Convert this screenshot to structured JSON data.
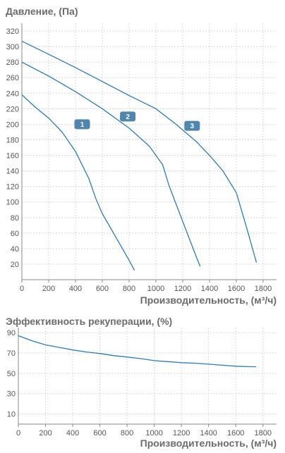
{
  "chart_data": [
    {
      "type": "line",
      "title": "Давление, (Па)",
      "xlabel": "Производительность, (м³/ч)",
      "ylabel": "",
      "xlim": [
        0,
        1900
      ],
      "ylim": [
        0,
        330
      ],
      "xticks": [
        "0",
        "200",
        "400",
        "600",
        "800",
        "1000",
        "1200",
        "1400",
        "1600",
        "1800"
      ],
      "yticks": [
        "20",
        "40",
        "60",
        "80",
        "100",
        "120",
        "140",
        "160",
        "180",
        "200",
        "220",
        "240",
        "260",
        "280",
        "300",
        "320"
      ],
      "grid": true,
      "series": [
        {
          "name": "1",
          "x": [
            0,
            100,
            200,
            300,
            400,
            500,
            550,
            600,
            700,
            800,
            840
          ],
          "y": [
            238,
            222,
            208,
            190,
            165,
            130,
            105,
            85,
            55,
            25,
            12
          ]
        },
        {
          "name": "2",
          "x": [
            0,
            200,
            400,
            600,
            800,
            950,
            1050,
            1100,
            1200,
            1300,
            1330
          ],
          "y": [
            280,
            262,
            242,
            220,
            195,
            172,
            148,
            120,
            75,
            30,
            17
          ]
        },
        {
          "name": "3",
          "x": [
            0,
            200,
            400,
            600,
            800,
            1000,
            1150,
            1300,
            1400,
            1500,
            1600,
            1680,
            1750
          ],
          "y": [
            307,
            290,
            273,
            255,
            237,
            220,
            200,
            178,
            160,
            140,
            112,
            65,
            22
          ]
        }
      ],
      "labels": [
        {
          "text": "1",
          "x": 450,
          "y": 200
        },
        {
          "text": "2",
          "x": 790,
          "y": 210
        },
        {
          "text": "3",
          "x": 1270,
          "y": 198
        }
      ]
    },
    {
      "type": "line",
      "title": "Эффективность рекуперации, (%)",
      "xlabel": "Производительность, (м³/ч)",
      "ylabel": "",
      "xlim": [
        0,
        1900
      ],
      "ylim": [
        0,
        95
      ],
      "xticks": [
        "0",
        "200",
        "400",
        "600",
        "800",
        "1000",
        "1200",
        "1400",
        "1600",
        "1800"
      ],
      "yticks": [
        "10",
        "30",
        "50",
        "70",
        "90"
      ],
      "grid": true,
      "series": [
        {
          "x": [
            0,
            100,
            200,
            300,
            400,
            500,
            600,
            700,
            800,
            900,
            1000,
            1100,
            1200,
            1300,
            1400,
            1500,
            1600,
            1700,
            1750
          ],
          "y": [
            87,
            82,
            78,
            75.5,
            73,
            71,
            69.5,
            67.5,
            66,
            64.5,
            62.5,
            61.5,
            60.5,
            60,
            59,
            58,
            57,
            56.5,
            56.5
          ]
        }
      ]
    }
  ],
  "colors": {
    "line": "#2b7bb9",
    "badge": "#4f86b0",
    "grid": "#d8d8d8",
    "axis": "#888888",
    "title": "#6b6b6b"
  }
}
